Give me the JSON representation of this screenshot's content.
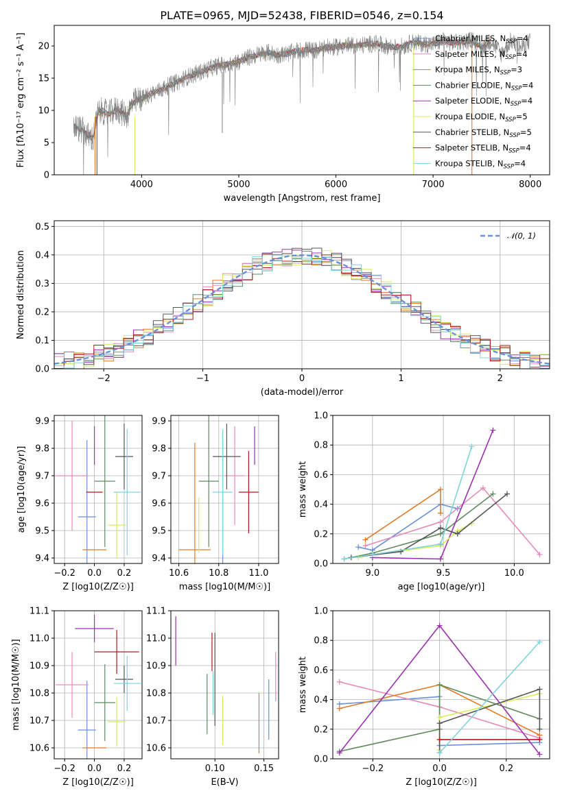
{
  "figure_title": "PLATE=0965, MJD=52438, FIBERID=0546, z=0.154",
  "colors": {
    "Chabrier MILES": "#6b8fd9",
    "Salpeter MILES": "#e68ab8",
    "Kroupa MILES": "#e07b2a",
    "Chabrier ELODIE": "#5e8a5e",
    "Salpeter ELODIE": "#9b30b0",
    "Kroupa ELODIE": "#d8ec5a",
    "Chabrier STELIB": "#555555",
    "Salpeter STELIB": "#b01818",
    "Kroupa STELIB": "#7fd3db"
  },
  "chart_data": [
    {
      "type": "line",
      "title": "PLATE=0965, MJD=52438, FIBERID=0546, z=0.154",
      "xlabel": "wavelength [Angstrom, rest frame]",
      "ylabel": "Flux [fλ10⁻¹⁷ erg cm⁻² s⁻¹ A⁻¹]",
      "xlim": [
        3100,
        8200
      ],
      "ylim": [
        0,
        23.2
      ],
      "xticks": [
        4000,
        5000,
        6000,
        7000,
        8000
      ],
      "yticks": [
        0,
        5,
        10,
        15,
        20
      ],
      "grid": false,
      "legend_position": "top-right",
      "data_series": {
        "name": "data",
        "color": "#808080",
        "x": [
          3300,
          3350,
          3400,
          3450,
          3500,
          3550,
          3600,
          3650,
          3700,
          3750,
          3800,
          3850,
          3900,
          3950,
          4000,
          4100,
          4200,
          4300,
          4400,
          4500,
          4600,
          4700,
          4800,
          4900,
          5000,
          5100,
          5200,
          5300,
          5400,
          5500,
          5600,
          5700,
          5800,
          5900,
          6000,
          6100,
          6200,
          6300,
          6400,
          6500,
          6600,
          6700,
          6800,
          6900,
          7000,
          7100,
          7200,
          7300,
          7400,
          7500,
          7600,
          7700,
          7800,
          7900,
          8000
        ],
        "y": [
          7.5,
          7.2,
          6.8,
          6.0,
          5.6,
          9.5,
          10.0,
          9.3,
          9.8,
          10.2,
          9.6,
          9.2,
          11.0,
          11.5,
          11.8,
          12.6,
          13.2,
          14.0,
          14.6,
          15.4,
          15.9,
          16.5,
          17.0,
          17.2,
          17.6,
          18.2,
          18.7,
          19.0,
          18.6,
          18.8,
          19.2,
          19.4,
          19.3,
          19.8,
          19.8,
          20.1,
          20.0,
          20.2,
          20.4,
          20.0,
          19.8,
          20.0,
          20.6,
          20.3,
          20.3,
          20.8,
          20.5,
          20.6,
          20.9,
          19.8,
          20.8,
          18.8,
          20.8,
          19.7,
          20.8
        ]
      },
      "models": [
        {
          "name": "Chabrier MILES",
          "label": "Chabrier MILES, N_SSP=4",
          "nssp": 4
        },
        {
          "name": "Salpeter MILES",
          "label": "Salpeter MILES, N_SSP=4",
          "nssp": 4
        },
        {
          "name": "Kroupa MILES",
          "label": "Kroupa MILES, N_SSP=3",
          "nssp": 3
        },
        {
          "name": "Chabrier ELODIE",
          "label": "Chabrier ELODIE, N_SSP=4",
          "nssp": 4
        },
        {
          "name": "Salpeter ELODIE",
          "label": "Salpeter ELODIE, N_SSP=4",
          "nssp": 4
        },
        {
          "name": "Kroupa ELODIE",
          "label": "Kroupa ELODIE, N_SSP=5",
          "nssp": 5
        },
        {
          "name": "Chabrier STELIB",
          "label": "Chabrier STELIB, N_SSP=5",
          "nssp": 5
        },
        {
          "name": "Salpeter STELIB",
          "label": "Salpeter STELIB, N_SSP=4",
          "nssp": 4
        },
        {
          "name": "Kroupa STELIB",
          "label": "Kroupa STELIB, N_SSP=4",
          "nssp": 4
        }
      ]
    },
    {
      "type": "line",
      "xlabel": "(data-model)/error",
      "ylabel": "Normed distribution",
      "xlim": [
        -2.5,
        2.5
      ],
      "ylim": [
        0,
        0.52
      ],
      "xticks": [
        -2,
        -1,
        0,
        1,
        2
      ],
      "yticks": [
        0.0,
        0.1,
        0.2,
        0.3,
        0.4,
        0.5
      ],
      "grid": true,
      "legend_position": "top-right",
      "reference_curve": {
        "name": "𝒩(0, 1)",
        "mean": 0,
        "sigma": 1,
        "style": "dashed"
      },
      "histogram_bin_width": 0.1
    },
    {
      "type": "scatter",
      "xlabel": "Z [log10(Z/Z☉)]",
      "ylabel": "age  [log10(age/yr)]",
      "xlim": [
        -0.27,
        0.32
      ],
      "ylim": [
        9.38,
        9.92
      ],
      "xticks": [
        -0.2,
        0.0,
        0.2
      ],
      "yticks": [
        9.4,
        9.5,
        9.6,
        9.7,
        9.8,
        9.9
      ],
      "grid": true,
      "series": [
        {
          "name": "Chabrier MILES",
          "x": -0.05,
          "y": 9.55,
          "xerr": 0.06,
          "yerr": 0.28
        },
        {
          "name": "Salpeter MILES",
          "x": -0.15,
          "y": 9.7,
          "xerr": 0.11,
          "yerr": 0.2
        },
        {
          "name": "Kroupa MILES",
          "x": 0.0,
          "y": 9.43,
          "xerr": 0.08,
          "yerr": 0.0
        },
        {
          "name": "Chabrier ELODIE",
          "x": 0.07,
          "y": 9.68,
          "xerr": 0.07,
          "yerr": 0.24
        },
        {
          "name": "Salpeter ELODIE",
          "x": 0.0,
          "y": 9.81,
          "xerr": 0.0,
          "yerr": 0.07
        },
        {
          "name": "Kroupa ELODIE",
          "x": 0.15,
          "y": 9.52,
          "xerr": 0.06,
          "yerr": 0.12
        },
        {
          "name": "Chabrier STELIB",
          "x": 0.2,
          "y": 9.77,
          "xerr": 0.06,
          "yerr": 0.12
        },
        {
          "name": "Salpeter STELIB",
          "x": 0.0,
          "y": 9.64,
          "xerr": 0.0,
          "yerr": 0.0
        },
        {
          "name": "Kroupa STELIB",
          "x": 0.22,
          "y": 9.64,
          "xerr": 0.09,
          "yerr": 0.23
        }
      ]
    },
    {
      "type": "scatter",
      "xlabel": "mass [log10(M/M☉)]",
      "xlim": [
        10.56,
        11.1
      ],
      "ylim": [
        9.38,
        9.92
      ],
      "xticks": [
        10.6,
        10.8,
        11.0
      ],
      "yticks": [
        9.4,
        9.5,
        9.6,
        9.7,
        9.8,
        9.9
      ],
      "grid": true,
      "series": [
        {
          "name": "Chabrier MILES",
          "x": 10.82,
          "y": 9.55,
          "xerr": 0.0,
          "yerr": 0.28
        },
        {
          "name": "Salpeter MILES",
          "x": 10.88,
          "y": 9.7,
          "xerr": 0.05,
          "yerr": 0.18
        },
        {
          "name": "Kroupa MILES",
          "x": 10.68,
          "y": 9.43,
          "xerr": 0.08,
          "yerr": 0.39
        },
        {
          "name": "Chabrier ELODIE",
          "x": 10.75,
          "y": 9.68,
          "xerr": 0.05,
          "yerr": 0.24
        },
        {
          "name": "Salpeter ELODIE",
          "x": 10.98,
          "y": 9.81,
          "xerr": 0.0,
          "yerr": 0.07
        },
        {
          "name": "Kroupa ELODIE",
          "x": 10.7,
          "y": 9.52,
          "xerr": 0.0,
          "yerr": 0.1
        },
        {
          "name": "Chabrier STELIB",
          "x": 10.84,
          "y": 9.77,
          "xerr": 0.07,
          "yerr": 0.12
        },
        {
          "name": "Salpeter STELIB",
          "x": 10.95,
          "y": 9.64,
          "xerr": 0.05,
          "yerr": 0.15
        },
        {
          "name": "Kroupa STELIB",
          "x": 10.82,
          "y": 9.64,
          "xerr": 0.05,
          "yerr": 0.23
        }
      ]
    },
    {
      "type": "line",
      "xlabel": "age  [log10(age/yr)]",
      "ylabel": "mass weight",
      "xlim": [
        8.72,
        10.25
      ],
      "ylim": [
        0,
        1.0
      ],
      "xticks": [
        9.0,
        9.5,
        10.0
      ],
      "yticks": [
        0.0,
        0.2,
        0.4,
        0.6,
        0.8,
        1.0
      ],
      "grid": true,
      "series": [
        {
          "name": "Chabrier MILES",
          "x": [
            8.9,
            9.0,
            9.48,
            9.6
          ],
          "y": [
            0.11,
            0.09,
            0.4,
            0.37
          ]
        },
        {
          "name": "Salpeter MILES",
          "x": [
            8.95,
            9.48,
            9.78,
            10.18
          ],
          "y": [
            0.12,
            0.28,
            0.51,
            0.06
          ]
        },
        {
          "name": "Kroupa MILES",
          "x": [
            8.95,
            9.48,
            9.48
          ],
          "y": [
            0.16,
            0.5,
            0.34
          ]
        },
        {
          "name": "Chabrier ELODIE",
          "x": [
            8.8,
            9.0,
            9.48,
            9.85
          ],
          "y": [
            0.03,
            0.07,
            0.2,
            0.47
          ]
        },
        {
          "name": "Salpeter ELODIE",
          "x": [
            9.0,
            9.48,
            9.85
          ],
          "y": [
            0.04,
            0.03,
            0.9
          ]
        },
        {
          "name": "Kroupa ELODIE",
          "x": [
            8.9,
            9.0,
            9.48,
            9.6,
            9.7
          ],
          "y": [
            0.04,
            0.06,
            0.12,
            0.22,
            0.27
          ]
        },
        {
          "name": "Chabrier STELIB",
          "x": [
            8.85,
            9.2,
            9.48,
            9.6,
            9.95
          ],
          "y": [
            0.04,
            0.08,
            0.24,
            0.2,
            0.47
          ]
        },
        {
          "name": "Salpeter STELIB",
          "x": [
            9.48
          ],
          "y": [
            0.13
          ]
        },
        {
          "name": "Kroupa STELIB",
          "x": [
            8.8,
            9.0,
            9.48,
            9.7
          ],
          "y": [
            0.03,
            0.06,
            0.13,
            0.79
          ]
        }
      ]
    },
    {
      "type": "scatter",
      "xlabel": "Z [log10(Z/Z☉)]",
      "ylabel": "mass [log10(M/M☉)]",
      "xlim": [
        -0.27,
        0.32
      ],
      "ylim": [
        10.56,
        11.1
      ],
      "xticks": [
        -0.2,
        0.0,
        0.2
      ],
      "yticks": [
        10.6,
        10.7,
        10.8,
        10.9,
        11.0,
        11.1
      ],
      "grid": true,
      "series": [
        {
          "name": "Chabrier MILES",
          "x": -0.05,
          "y": 10.665,
          "xerr": 0.06,
          "yerr": 0.18
        },
        {
          "name": "Salpeter MILES",
          "x": -0.15,
          "y": 10.83,
          "xerr": 0.11,
          "yerr": 0.12
        },
        {
          "name": "Kroupa MILES",
          "x": 0.0,
          "y": 10.6,
          "xerr": 0.08,
          "yerr": 0.0
        },
        {
          "name": "Chabrier ELODIE",
          "x": 0.07,
          "y": 10.765,
          "xerr": 0.07,
          "yerr": 0.14
        },
        {
          "name": "Salpeter ELODIE",
          "x": 0.0,
          "y": 11.035,
          "xerr": 0.13,
          "yerr": 0.05
        },
        {
          "name": "Kroupa ELODIE",
          "x": 0.15,
          "y": 10.695,
          "xerr": 0.06,
          "yerr": 0.09
        },
        {
          "name": "Chabrier STELIB",
          "x": 0.2,
          "y": 10.85,
          "xerr": 0.06,
          "yerr": 0.05
        },
        {
          "name": "Salpeter STELIB",
          "x": 0.15,
          "y": 10.95,
          "xerr": 0.15,
          "yerr": 0.08
        },
        {
          "name": "Kroupa STELIB",
          "x": 0.22,
          "y": 10.835,
          "xerr": 0.09,
          "yerr": 0.1
        }
      ]
    },
    {
      "type": "scatter",
      "xlabel": "E(B-V)",
      "xlim": [
        0.055,
        0.165
      ],
      "ylim": [
        10.56,
        11.1
      ],
      "xticks": [
        0.05,
        0.1,
        0.15
      ],
      "yticks": [
        10.6,
        10.7,
        10.8,
        10.9,
        11.0,
        11.1
      ],
      "grid": true,
      "series": [
        {
          "name": "Chabrier MILES",
          "x": 0.155,
          "y": 10.74,
          "yerr": 0.11
        },
        {
          "name": "Salpeter MILES",
          "x": 0.162,
          "y": 10.86,
          "yerr": 0.09
        },
        {
          "name": "Kroupa MILES",
          "x": 0.145,
          "y": 10.69,
          "yerr": 0.11
        },
        {
          "name": "Chabrier ELODIE",
          "x": 0.092,
          "y": 10.76,
          "yerr": 0.11
        },
        {
          "name": "Salpeter ELODIE",
          "x": 0.06,
          "y": 10.99,
          "yerr": 0.09
        },
        {
          "name": "Kroupa ELODIE",
          "x": 0.108,
          "y": 10.7,
          "yerr": 0.09
        },
        {
          "name": "Chabrier STELIB",
          "x": 0.1,
          "y": 10.85,
          "yerr": 0.17
        },
        {
          "name": "Salpeter STELIB",
          "x": 0.097,
          "y": 10.95,
          "yerr": 0.07
        },
        {
          "name": "Kroupa STELIB",
          "x": 0.098,
          "y": 10.8,
          "yerr": 0.08
        }
      ]
    },
    {
      "type": "line",
      "xlabel": "Z [log10(Z/Z☉)]",
      "ylabel": "mass weight",
      "xlim": [
        -0.32,
        0.33
      ],
      "ylim": [
        0,
        1.0
      ],
      "xticks": [
        -0.2,
        0.0,
        0.2
      ],
      "yticks": [
        0.0,
        0.2,
        0.4,
        0.6,
        0.8,
        1.0
      ],
      "grid": true,
      "series": [
        {
          "name": "Chabrier MILES",
          "x": [
            -0.3,
            0.0,
            0.0,
            0.3
          ],
          "y": [
            0.37,
            0.42,
            0.09,
            0.11
          ]
        },
        {
          "name": "Salpeter MILES",
          "x": [
            -0.3,
            0.0,
            0.3
          ],
          "y": [
            0.52,
            0.35,
            0.14
          ]
        },
        {
          "name": "Kroupa MILES",
          "x": [
            -0.3,
            0.0,
            0.3
          ],
          "y": [
            0.34,
            0.5,
            0.16
          ]
        },
        {
          "name": "Chabrier ELODIE",
          "x": [
            -0.3,
            0.0,
            0.0,
            0.3
          ],
          "y": [
            0.05,
            0.2,
            0.5,
            0.27
          ]
        },
        {
          "name": "Salpeter ELODIE",
          "x": [
            -0.3,
            0.0,
            0.3
          ],
          "y": [
            0.04,
            0.9,
            0.03
          ]
        },
        {
          "name": "Kroupa ELODIE",
          "x": [
            0.0,
            0.0,
            0.3
          ],
          "y": [
            0.06,
            0.28,
            0.44
          ]
        },
        {
          "name": "Chabrier STELIB",
          "x": [
            0.0,
            0.0,
            0.3,
            0.3
          ],
          "y": [
            0.04,
            0.24,
            0.47,
            0.2
          ]
        },
        {
          "name": "Salpeter STELIB",
          "x": [
            0.0,
            0.3
          ],
          "y": [
            0.13,
            0.13
          ]
        },
        {
          "name": "Kroupa STELIB",
          "x": [
            0.0,
            0.3
          ],
          "y": [
            0.04,
            0.79
          ]
        }
      ]
    }
  ]
}
